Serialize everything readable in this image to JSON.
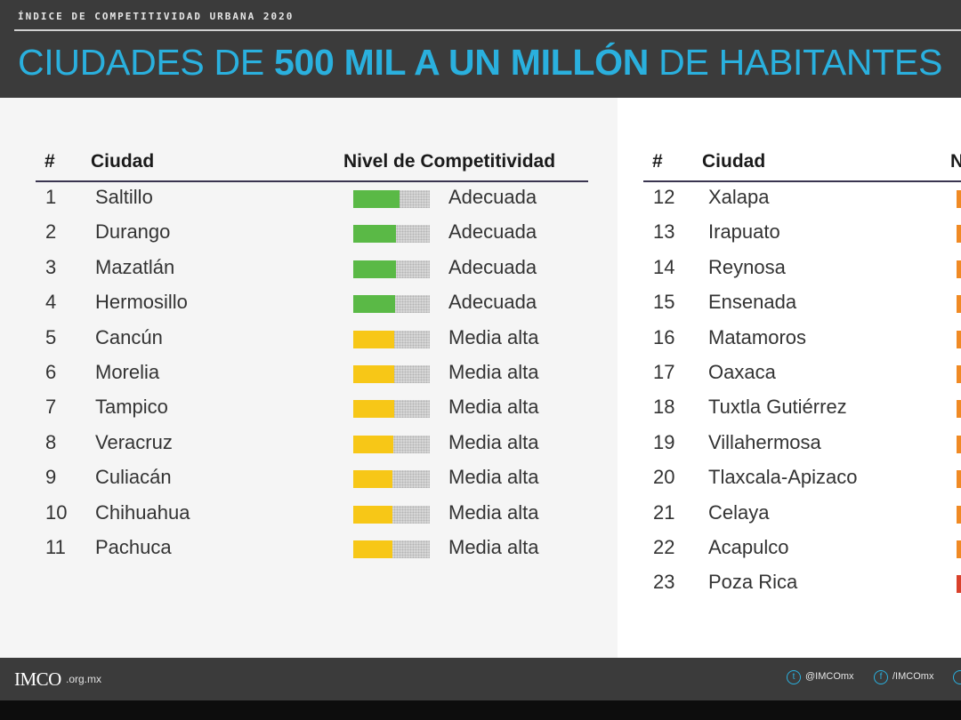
{
  "header": {
    "kicker": "ÍNDICE DE COMPETITIVIDAD URBANA 2020",
    "title_pre": "CIUDADES DE ",
    "title_bold": "500 MIL A UN MILLÓN",
    "title_post": " DE HABITANTES"
  },
  "left_table": {
    "col_rank": "#",
    "col_city": "Ciudad",
    "col_level": "Nivel de Competitividad",
    "rows": [
      {
        "rank": "1",
        "city": "Saltillo",
        "level": "Adecuada",
        "score": 0.6,
        "color": "#5ab946"
      },
      {
        "rank": "2",
        "city": "Durango",
        "level": "Adecuada",
        "score": 0.56,
        "color": "#5ab946"
      },
      {
        "rank": "3",
        "city": "Mazatlán",
        "level": "Adecuada",
        "score": 0.56,
        "color": "#5ab946"
      },
      {
        "rank": "4",
        "city": "Hermosillo",
        "level": "Adecuada",
        "score": 0.55,
        "color": "#5ab946"
      },
      {
        "rank": "5",
        "city": "Cancún",
        "level": "Media alta",
        "score": 0.54,
        "color": "#f7c717"
      },
      {
        "rank": "6",
        "city": "Morelia",
        "level": "Media alta",
        "score": 0.53,
        "color": "#f7c717"
      },
      {
        "rank": "7",
        "city": "Tampico",
        "level": "Media alta",
        "score": 0.53,
        "color": "#f7c717"
      },
      {
        "rank": "8",
        "city": "Veracruz",
        "level": "Media alta",
        "score": 0.52,
        "color": "#f7c717"
      },
      {
        "rank": "9",
        "city": "Culiacán",
        "level": "Media alta",
        "score": 0.51,
        "color": "#f7c717"
      },
      {
        "rank": "10",
        "city": "Chihuahua",
        "level": "Media alta",
        "score": 0.51,
        "color": "#f7c717"
      },
      {
        "rank": "11",
        "city": "Pachuca",
        "level": "Media alta",
        "score": 0.51,
        "color": "#f7c717"
      }
    ]
  },
  "right_table": {
    "col_rank": "#",
    "col_city": "Ciudad",
    "col_level_partial": "N",
    "rows": [
      {
        "rank": "12",
        "city": "Xalapa",
        "color": "#f08a24"
      },
      {
        "rank": "13",
        "city": "Irapuato",
        "color": "#f08a24"
      },
      {
        "rank": "14",
        "city": "Reynosa",
        "color": "#f08a24"
      },
      {
        "rank": "15",
        "city": "Ensenada",
        "color": "#f08a24"
      },
      {
        "rank": "16",
        "city": "Matamoros",
        "color": "#f08a24"
      },
      {
        "rank": "17",
        "city": "Oaxaca",
        "color": "#f08a24"
      },
      {
        "rank": "18",
        "city": "Tuxtla Gutiérrez",
        "color": "#f08a24"
      },
      {
        "rank": "19",
        "city": "Villahermosa",
        "color": "#f08a24"
      },
      {
        "rank": "20",
        "city": "Tlaxcala-Apizaco",
        "color": "#f08a24"
      },
      {
        "rank": "21",
        "city": "Celaya",
        "color": "#f08a24"
      },
      {
        "rank": "22",
        "city": "Acapulco",
        "color": "#f08a24"
      },
      {
        "rank": "23",
        "city": "Poza Rica",
        "color": "#d9412b"
      }
    ]
  },
  "footer": {
    "logo": "IMCO",
    "logo_suffix": ".org.mx",
    "social": [
      {
        "icon": "twitter-icon",
        "glyph": "t",
        "label": "@IMCOmx"
      },
      {
        "icon": "facebook-icon",
        "glyph": "f",
        "label": "/IMCOmx"
      }
    ]
  }
}
